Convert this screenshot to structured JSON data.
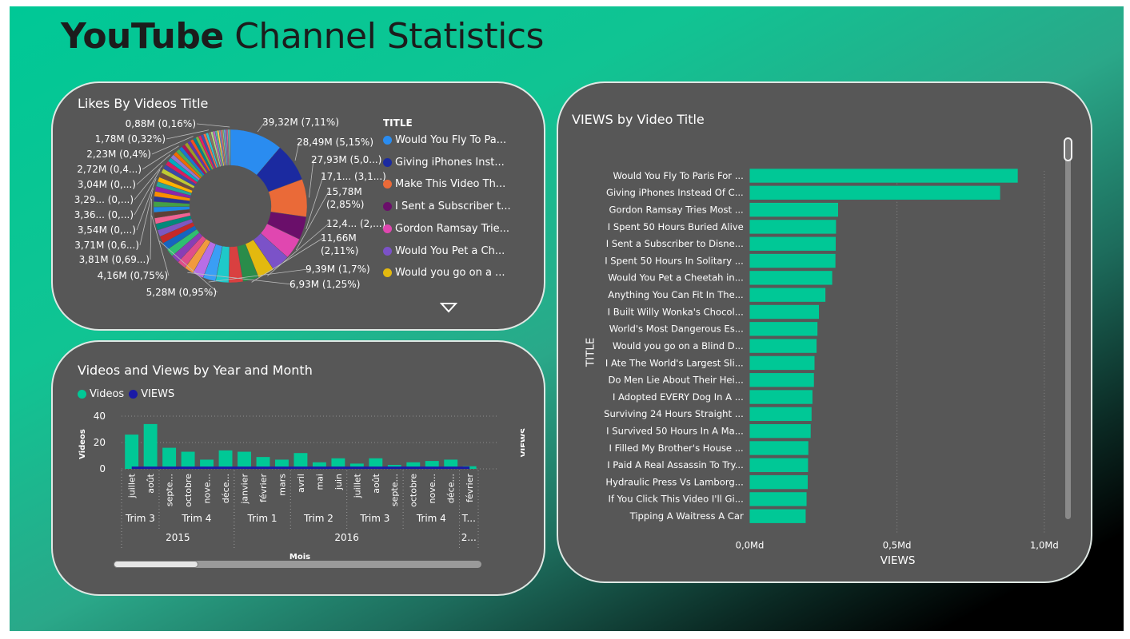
{
  "page": {
    "title_bold": "YouTube",
    "title_rest": " Channel Statistics"
  },
  "colors": {
    "accent": "#00c896",
    "views_line": "#1a1aa6",
    "card": "#575757"
  },
  "likes_card": {
    "title": "Likes By Videos Title",
    "legend_title": "TITLE",
    "legend": [
      {
        "label": "Would You Fly To Pa...",
        "color": "#2a8cf0"
      },
      {
        "label": "Giving iPhones Inst...",
        "color": "#1b2aa0"
      },
      {
        "label": "Make This Video Th...",
        "color": "#ea6a38"
      },
      {
        "label": "I Sent a Subscriber t...",
        "color": "#6a0f6a"
      },
      {
        "label": "Gordon Ramsay Trie...",
        "color": "#e047b0"
      },
      {
        "label": "Would You Pet a Ch...",
        "color": "#7b52c8"
      },
      {
        "label": "Would you go on a ...",
        "color": "#e3b90f"
      }
    ],
    "more_icon": "triangle-down-icon"
  },
  "combo_card": {
    "title": "Videos and Views by Year and Month",
    "legend": [
      {
        "label": "Videos",
        "color": "#00c896"
      },
      {
        "label": "VIEWS",
        "color": "#1a1aa6"
      }
    ],
    "y_left_label": "Videos",
    "y_right_label": "VIEWS",
    "x_label": "Mois",
    "quarters": [
      {
        "label": "Trim 3",
        "from": 0,
        "to": 1
      },
      {
        "label": "Trim 4",
        "from": 2,
        "to": 5
      },
      {
        "label": "Trim 1",
        "from": 6,
        "to": 8
      },
      {
        "label": "Trim 2",
        "from": 9,
        "to": 11
      },
      {
        "label": "Trim 3",
        "from": 12,
        "to": 14
      },
      {
        "label": "Trim 4",
        "from": 15,
        "to": 17
      },
      {
        "label": "T...",
        "from": 18,
        "to": 18
      }
    ],
    "years": [
      {
        "label": "2015",
        "from": 0,
        "to": 5
      },
      {
        "label": "2016",
        "from": 6,
        "to": 17
      },
      {
        "label": "2...",
        "from": 18,
        "to": 18
      }
    ]
  },
  "views_card": {
    "title": "VIEWS by Video Title",
    "y_axis_label": "TITLE",
    "x_axis_label": "VIEWS"
  },
  "chart_data": [
    {
      "type": "pie",
      "title": "Likes By Videos Title",
      "legend_title": "TITLE",
      "slices": [
        {
          "label": "Would You Fly To Pa...",
          "value": 39.32,
          "text": "39,32M (7,11%)",
          "color": "#2a8cf0"
        },
        {
          "label": "Giving iPhones Inst...",
          "value": 28.49,
          "text": "28,49M (5,15%)",
          "color": "#1b2aa0"
        },
        {
          "label": "Make This Video Th...",
          "value": 27.93,
          "text": "27,93M (5,0...)",
          "color": "#ea6a38"
        },
        {
          "label": "I Sent a Subscriber t...",
          "value": 17.1,
          "text": "17,1... (3,1...)",
          "color": "#6a0f6a"
        },
        {
          "label": "Gordon Ramsay Trie...",
          "value": 15.78,
          "text": "15,78M (2,85%)",
          "color": "#e047b0"
        },
        {
          "label": "Would You Pet a Ch...",
          "value": 13.5,
          "text": "",
          "color": "#7b52c8"
        },
        {
          "label": "Would you go on a ...",
          "value": 12.4,
          "text": "12,4... (2,...)",
          "color": "#e3b90f"
        },
        {
          "label": "",
          "value": 11.66,
          "text": "11,66M (2,11%)",
          "color": "#2a8c4a"
        },
        {
          "label": "",
          "value": 10.5,
          "text": "",
          "color": "#d94040"
        },
        {
          "label": "",
          "value": 9.8,
          "text": "",
          "color": "#1ec9c9"
        },
        {
          "label": "",
          "value": 9.39,
          "text": "9,39M (1,7%)",
          "color": "#3a9ef5"
        },
        {
          "label": "",
          "value": 8.2,
          "text": "",
          "color": "#b86ee6"
        },
        {
          "label": "",
          "value": 6.93,
          "text": "6,93M (1,25%)",
          "color": "#f19a3e"
        },
        {
          "label": "",
          "value": 6.5,
          "text": "",
          "color": "#e04d8a"
        },
        {
          "label": "",
          "value": 6.2,
          "text": "",
          "color": "#8a3db5"
        },
        {
          "label": "",
          "value": 5.9,
          "text": "",
          "color": "#2fbf71"
        },
        {
          "label": "",
          "value": 5.6,
          "text": "",
          "color": "#1565c0"
        },
        {
          "label": "",
          "value": 5.28,
          "text": "5,28M (0,95%)",
          "color": "#c62828"
        },
        {
          "label": "",
          "value": 5.0,
          "text": "",
          "color": "#7e57c2"
        },
        {
          "label": "",
          "value": 4.7,
          "text": "",
          "color": "#00897b"
        },
        {
          "label": "",
          "value": 4.4,
          "text": "",
          "color": "#f06292"
        },
        {
          "label": "",
          "value": 4.16,
          "text": "4,16M (0,75%)",
          "color": "#5d4037"
        },
        {
          "label": "",
          "value": 4.0,
          "text": "",
          "color": "#1e88e5"
        },
        {
          "label": "",
          "value": 3.9,
          "text": "",
          "color": "#43a047"
        },
        {
          "label": "",
          "value": 3.81,
          "text": "3,81M (0,69...)",
          "color": "#283593"
        },
        {
          "label": "",
          "value": 3.75,
          "text": "",
          "color": "#fb8c00"
        },
        {
          "label": "",
          "value": 3.71,
          "text": "3,71M (0,6...)",
          "color": "#8e24aa"
        },
        {
          "label": "",
          "value": 3.6,
          "text": "",
          "color": "#26a69a"
        },
        {
          "label": "",
          "value": 3.54,
          "text": "3,54M (0,...)",
          "color": "#ffb300"
        },
        {
          "label": "",
          "value": 3.45,
          "text": "",
          "color": "#6d4c41"
        },
        {
          "label": "",
          "value": 3.36,
          "text": "3,36... (0,...)",
          "color": "#c0ca33"
        },
        {
          "label": "",
          "value": 3.29,
          "text": "3,29... (0,...)",
          "color": "#3949ab"
        },
        {
          "label": "",
          "value": 3.2,
          "text": "",
          "color": "#d81b60"
        },
        {
          "label": "",
          "value": 3.1,
          "text": "",
          "color": "#00acc1"
        },
        {
          "label": "",
          "value": 3.04,
          "text": "3,04M (0,...)",
          "color": "#9575cd"
        },
        {
          "label": "",
          "value": 2.9,
          "text": "",
          "color": "#ef6c00"
        },
        {
          "label": "",
          "value": 2.8,
          "text": "",
          "color": "#4caf50"
        },
        {
          "label": "",
          "value": 2.72,
          "text": "2,72M (0,4...)",
          "color": "#1976d2"
        },
        {
          "label": "",
          "value": 2.6,
          "text": "",
          "color": "#ad1457"
        },
        {
          "label": "",
          "value": 2.5,
          "text": "",
          "color": "#9e9d24"
        },
        {
          "label": "",
          "value": 2.4,
          "text": "",
          "color": "#5e35b1"
        },
        {
          "label": "",
          "value": 2.3,
          "text": "",
          "color": "#f4511e"
        },
        {
          "label": "",
          "value": 2.23,
          "text": "2,23M (0,4%)",
          "color": "#00838f"
        },
        {
          "label": "",
          "value": 2.1,
          "text": "",
          "color": "#7cb342"
        },
        {
          "label": "",
          "value": 2.0,
          "text": "",
          "color": "#e91e63"
        },
        {
          "label": "",
          "value": 1.95,
          "text": "",
          "color": "#3f51b5"
        },
        {
          "label": "",
          "value": 1.9,
          "text": "",
          "color": "#ff7043"
        },
        {
          "label": "",
          "value": 1.85,
          "text": "",
          "color": "#26c6da"
        },
        {
          "label": "",
          "value": 1.78,
          "text": "1,78M (0,32%)",
          "color": "#8d6e63"
        },
        {
          "label": "",
          "value": 1.7,
          "text": "",
          "color": "#aed581"
        },
        {
          "label": "",
          "value": 1.6,
          "text": "",
          "color": "#ba68c8"
        },
        {
          "label": "",
          "value": 1.5,
          "text": "",
          "color": "#4db6ac"
        },
        {
          "label": "",
          "value": 1.4,
          "text": "",
          "color": "#ffd54f"
        },
        {
          "label": "",
          "value": 1.3,
          "text": "",
          "color": "#7986cb"
        },
        {
          "label": "",
          "value": 1.2,
          "text": "",
          "color": "#e57373"
        },
        {
          "label": "",
          "value": 1.1,
          "text": "",
          "color": "#81c784"
        },
        {
          "label": "",
          "value": 1.05,
          "text": "",
          "color": "#64b5f6"
        },
        {
          "label": "",
          "value": 1.0,
          "text": "",
          "color": "#9575cd"
        },
        {
          "label": "",
          "value": 0.95,
          "text": "",
          "color": "#f06292"
        },
        {
          "label": "",
          "value": 0.92,
          "text": "",
          "color": "#4dd0e1"
        },
        {
          "label": "",
          "value": 0.88,
          "text": "0,88M (0,16%)",
          "color": "#aed581"
        }
      ]
    },
    {
      "type": "bar",
      "title": "Videos and Views by Year and Month",
      "categories": [
        "juillet",
        "août",
        "septe...",
        "octobre",
        "nove...",
        "déce...",
        "janvier",
        "février",
        "mars",
        "avril",
        "mai",
        "juin",
        "juillet",
        "août",
        "septe...",
        "octobre",
        "nove...",
        "déce...",
        "février"
      ],
      "series": [
        {
          "name": "Videos",
          "values": [
            26,
            34,
            16,
            13,
            7,
            14,
            13,
            9,
            7,
            12,
            5,
            8,
            4,
            8,
            3,
            5,
            6,
            7,
            2
          ]
        },
        {
          "name": "VIEWS",
          "values": [
            0.02,
            0.02,
            0.02,
            0.02,
            0.02,
            0.02,
            0.02,
            0.02,
            0.02,
            0.02,
            0.02,
            0.02,
            0.02,
            0.02,
            0.02,
            0.02,
            0.02,
            0.02,
            0.02
          ]
        }
      ],
      "ylabel": "Videos",
      "y2label": "VIEWS",
      "xlabel": "Mois",
      "ylim": [
        0,
        40
      ],
      "yticks": [
        0,
        20,
        40
      ]
    },
    {
      "type": "bar",
      "orientation": "horizontal",
      "title": "VIEWS by Video Title",
      "categories": [
        "Would You Fly To Paris For ...",
        "Giving iPhones Instead Of C...",
        "Gordon Ramsay Tries Most ...",
        "I Spent 50 Hours Buried Alive",
        "I Sent a Subscriber to Disne...",
        "I Spent 50 Hours In Solitary ...",
        "Would You Pet a Cheetah in...",
        "Anything You Can Fit In The...",
        "I Built Willy Wonka's Chocol...",
        "World's Most Dangerous Es...",
        "Would you go on a Blind D...",
        "I Ate The World's Largest Sli...",
        "Do Men Lie About Their Hei...",
        "I Adopted EVERY Dog In A ...",
        "Surviving 24 Hours Straight ...",
        "I Survived 50 Hours In A Ma...",
        "I Filled My Brother's House ...",
        "I Paid A Real Assassin To Try...",
        "Hydraulic Press Vs Lamborg...",
        "If You Click This Video I'll Gi...",
        "Tipping A Waitress A Car"
      ],
      "values": [
        0.91,
        0.85,
        0.3,
        0.293,
        0.292,
        0.291,
        0.28,
        0.257,
        0.235,
        0.23,
        0.227,
        0.22,
        0.218,
        0.213,
        0.21,
        0.207,
        0.199,
        0.198,
        0.197,
        0.193,
        0.19
      ],
      "xlabel": "VIEWS",
      "ylabel": "TITLE",
      "xlim": [
        0,
        1.0
      ],
      "xticks": [
        "0,0Md",
        "0,5Md",
        "1,0Md"
      ]
    }
  ]
}
